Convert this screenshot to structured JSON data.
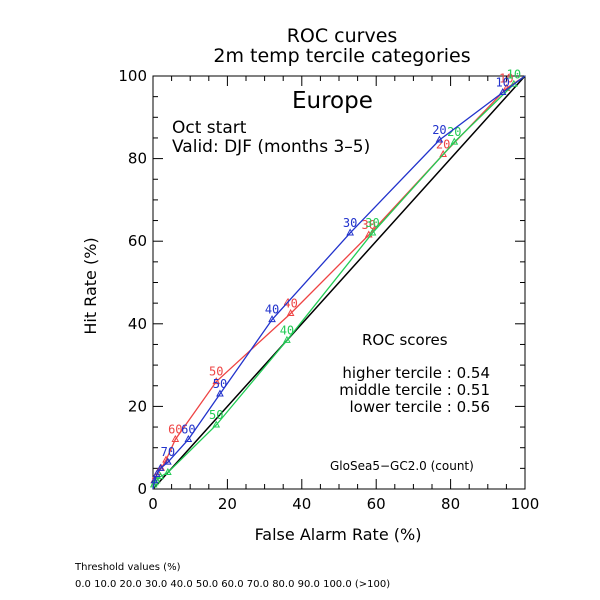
{
  "chart_data": {
    "type": "line",
    "title": "ROC curves",
    "subtitle": "2m temp tercile categories",
    "region": "Europe",
    "info_lines": [
      "Oct start",
      "Valid: DJF (months 3–5)"
    ],
    "xlabel": "False Alarm Rate (%)",
    "ylabel": "Hit Rate (%)",
    "xlim": [
      0,
      100
    ],
    "ylim": [
      0,
      100
    ],
    "x_ticks": [
      "0",
      "20",
      "40",
      "60",
      "80",
      "100"
    ],
    "y_ticks": [
      "0",
      "20",
      "40",
      "60",
      "80",
      "100"
    ],
    "grid": false,
    "diagonal": true,
    "scores_title": "ROC scores",
    "model_label": "GloSea5−GC2.0 (count)",
    "series": [
      {
        "name": "higher tercile",
        "score_text": "higher tercile : 0.54",
        "color": "#ee4444",
        "x": [
          0,
          0.3,
          0.7,
          1.3,
          2.2,
          3.5,
          6.0,
          17.0,
          37.0,
          58.0,
          78.0,
          95.0,
          100
        ],
        "y": [
          0,
          2.0,
          3.0,
          4.0,
          5.0,
          7.0,
          12.0,
          26.0,
          42.5,
          61.5,
          81.0,
          97.0,
          100
        ],
        "point_labels": [
          "",
          "",
          "",
          "",
          "",
          "",
          "60",
          "50",
          "40",
          "30",
          "20",
          "10",
          ""
        ]
      },
      {
        "name": "middle tercile",
        "score_text": "middle tercile : 0.51",
        "color": "#22cc55",
        "x": [
          0,
          0.2,
          0.5,
          1.0,
          2.0,
          4.0,
          17.0,
          36.0,
          59.0,
          81.0,
          97.0,
          100
        ],
        "y": [
          0,
          1.0,
          1.5,
          2.0,
          3.0,
          4.0,
          15.5,
          36.0,
          62.0,
          84.0,
          98.0,
          100
        ],
        "point_labels": [
          "",
          "",
          "",
          "",
          "",
          "",
          "50",
          "40",
          "30",
          "20",
          "10",
          ""
        ]
      },
      {
        "name": "lower tercile",
        "score_text": "lower tercile : 0.56",
        "color": "#2233cc",
        "x": [
          0,
          0.4,
          1.0,
          2.0,
          4.0,
          9.5,
          18.0,
          32.0,
          53.0,
          77.0,
          94.0,
          100
        ],
        "y": [
          0,
          2.0,
          3.5,
          5.0,
          6.5,
          12.0,
          23.0,
          41.0,
          62.0,
          84.5,
          96.0,
          100
        ],
        "point_labels": [
          "",
          "",
          "",
          "",
          "70",
          "60",
          "50",
          "40",
          "30",
          "20",
          "10",
          ""
        ]
      }
    ]
  },
  "footer": {
    "threshold_title": "Threshold values (%)",
    "threshold_values": "0.0 10.0 20.0 30.0 40.0 50.0 60.0 70.0 80.0 90.0 100.0 (>100)"
  }
}
